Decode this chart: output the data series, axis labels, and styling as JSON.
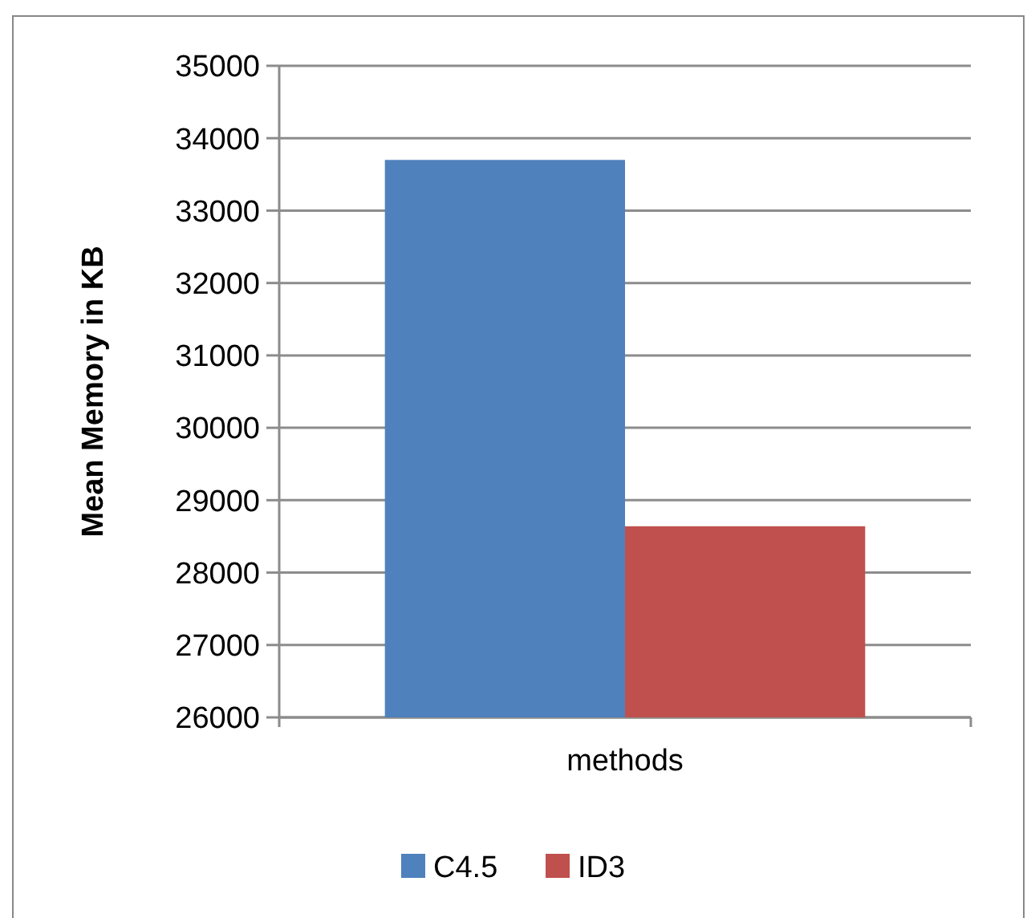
{
  "chart_data": {
    "type": "bar",
    "ylabel": "Mean Memory in KB",
    "categories": [
      "methods"
    ],
    "series": [
      {
        "name": "C4.5",
        "color": "#4f81bd",
        "values": [
          33700
        ]
      },
      {
        "name": "ID3",
        "color": "#c0504d",
        "values": [
          28640
        ]
      }
    ],
    "ylim": [
      26000,
      35000
    ],
    "yticks": [
      26000,
      27000,
      28000,
      29000,
      30000,
      31000,
      32000,
      33000,
      34000,
      35000
    ],
    "grid": "y",
    "legend": "bottom"
  }
}
